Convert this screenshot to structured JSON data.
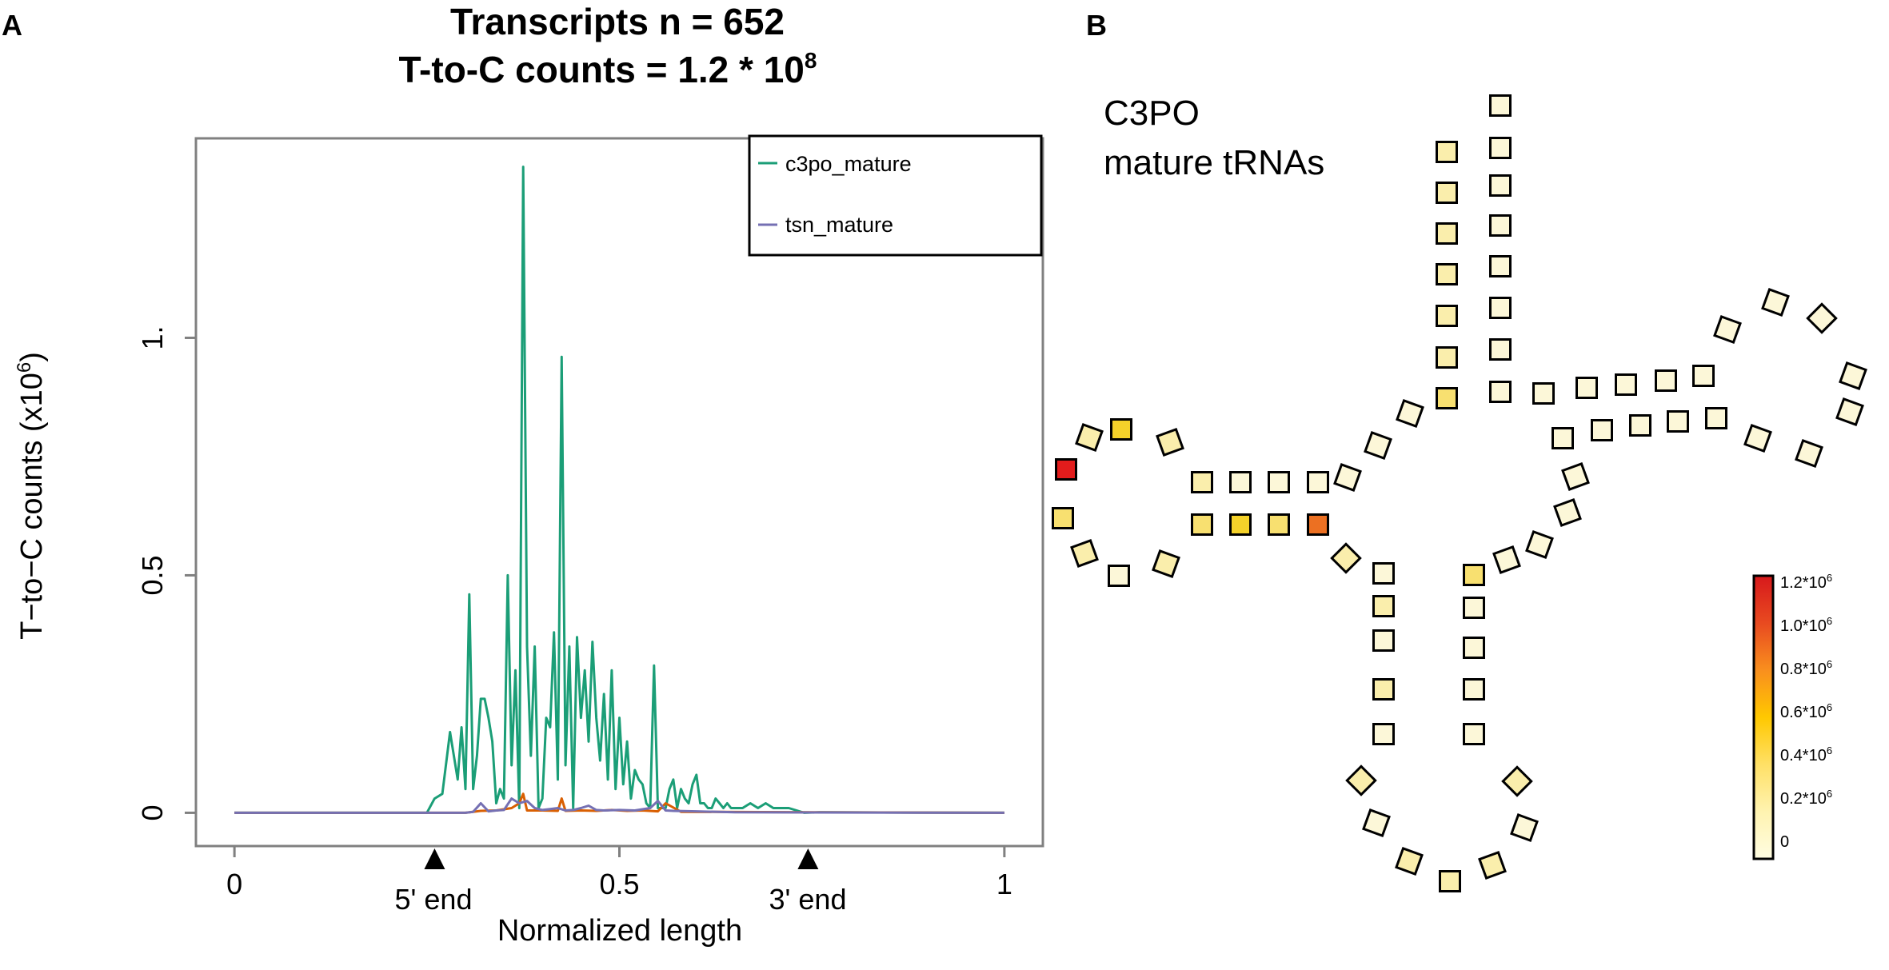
{
  "panel_a": {
    "label": "A",
    "title_line1": "Transcripts n = 652",
    "title_line2_main": "T-to-C counts = 1.2 * 10",
    "title_line2_sup": "8",
    "ylabel_main": "T−to−C counts (x10",
    "ylabel_sup": "6",
    "ylabel_close": ")",
    "xlabel": "Normalized length",
    "marker_5": "5' end",
    "marker_3": "3' end"
  },
  "panel_b": {
    "label": "B",
    "text_line1": "C3PO",
    "text_line2": "mature tRNAs",
    "colorbar": {
      "labels": [
        {
          "main": "1.2*10",
          "sup": "6",
          "v": 1.2
        },
        {
          "main": "1.0*10",
          "sup": "6",
          "v": 1.0
        },
        {
          "main": "0.8*10",
          "sup": "6",
          "v": 0.8
        },
        {
          "main": "0.6*10",
          "sup": "6",
          "v": 0.6
        },
        {
          "main": "0.4*10",
          "sup": "6",
          "v": 0.4
        },
        {
          "main": "0.2*10",
          "sup": "6",
          "v": 0.2
        },
        {
          "main": "0",
          "sup": "",
          "v": 0
        }
      ],
      "colors": [
        "#fffde2",
        "#fff3b0",
        "#ffe066",
        "#ffc800",
        "#f98f1e",
        "#e84a20",
        "#d7191c"
      ]
    },
    "colors": {
      "c0": "#fcf7d8",
      "c1": "#faeeac",
      "c2": "#f8e070",
      "c3": "#f5d22a",
      "orange": "#ec7022",
      "red": "#e21c1c"
    },
    "nucleotides": [
      {
        "c": "c1"
      },
      {
        "c": "c1"
      },
      {
        "c": "c1"
      },
      {
        "c": "c1"
      },
      {
        "c": "c1"
      },
      {
        "c": "c1"
      },
      {
        "c": "c2"
      },
      {
        "c": "c0"
      },
      {
        "c": "c0"
      },
      {
        "c": "c0"
      },
      {
        "c": "c0"
      },
      {
        "c": "c0"
      },
      {
        "c": "c0"
      },
      {
        "c": "c1"
      },
      {
        "c": "c1"
      },
      {
        "c": "c3"
      },
      {
        "c": "c1"
      },
      {
        "c": "red"
      },
      {
        "c": "c2"
      },
      {
        "c": "c1"
      },
      {
        "c": "c0"
      },
      {
        "c": "c1"
      },
      {
        "c": "c2"
      },
      {
        "c": "c3"
      },
      {
        "c": "c2"
      },
      {
        "c": "orange"
      },
      {
        "c": "c1"
      },
      {
        "c": "c0"
      },
      {
        "c": "c1"
      },
      {
        "c": "c0"
      },
      {
        "c": "c1"
      },
      {
        "c": "c0"
      },
      {
        "c": "c1"
      },
      {
        "c": "c0"
      },
      {
        "c": "c1"
      },
      {
        "c": "c1"
      },
      {
        "c": "c1"
      },
      {
        "c": "c0"
      },
      {
        "c": "c1"
      },
      {
        "c": "c0"
      },
      {
        "c": "c0"
      },
      {
        "c": "c0"
      },
      {
        "c": "c0"
      },
      {
        "c": "c2"
      },
      {
        "c": "c0"
      },
      {
        "c": "c0"
      },
      {
        "c": "c0"
      },
      {
        "c": "c0"
      },
      {
        "c": "c0"
      },
      {
        "c": "c0"
      },
      {
        "c": "c0"
      },
      {
        "c": "c0"
      },
      {
        "c": "c0"
      },
      {
        "c": "c0"
      },
      {
        "c": "c0"
      },
      {
        "c": "c0"
      },
      {
        "c": "c0"
      },
      {
        "c": "c0"
      },
      {
        "c": "c0"
      },
      {
        "c": "c0"
      },
      {
        "c": "c0"
      },
      {
        "c": "c0"
      },
      {
        "c": "c0"
      },
      {
        "c": "c0"
      },
      {
        "c": "c0"
      },
      {
        "c": "c0"
      },
      {
        "c": "c0"
      },
      {
        "c": "c0"
      },
      {
        "c": "c0"
      },
      {
        "c": "c0"
      },
      {
        "c": "c0"
      },
      {
        "c": "c0"
      },
      {
        "c": "c0"
      },
      {
        "c": "c0"
      },
      {
        "c": "c0"
      },
      {
        "c": "c0"
      },
      {
        "c": "c0"
      }
    ]
  },
  "chart_data": {
    "type": "line",
    "title": "Transcripts n = 652 / T-to-C counts = 1.2 * 10^8",
    "xlabel": "Normalized length",
    "ylabel": "T−to−C counts (x10^6)",
    "xlim": [
      -0.05,
      1.05
    ],
    "ylim": [
      -0.07,
      1.42
    ],
    "xticks": [
      {
        "v": 0,
        "label": "0"
      },
      {
        "v": 0.5,
        "label": "0.5"
      },
      {
        "v": 1,
        "label": "1"
      }
    ],
    "yticks": [
      {
        "v": 0,
        "label": "0"
      },
      {
        "v": 0.5,
        "label": "0.5"
      },
      {
        "v": 1,
        "label": "1."
      }
    ],
    "markers": [
      {
        "x": 0.26
      },
      {
        "x": 0.745
      }
    ],
    "legend_position": "top-right",
    "grid": false,
    "series": [
      {
        "name": "c3po_mature",
        "color": "#1b9e77",
        "x": [
          0,
          0.25,
          0.26,
          0.27,
          0.28,
          0.29,
          0.295,
          0.3,
          0.305,
          0.31,
          0.315,
          0.32,
          0.325,
          0.33,
          0.335,
          0.34,
          0.345,
          0.35,
          0.355,
          0.36,
          0.365,
          0.37,
          0.375,
          0.38,
          0.385,
          0.39,
          0.395,
          0.4,
          0.405,
          0.41,
          0.415,
          0.42,
          0.425,
          0.43,
          0.435,
          0.44,
          0.445,
          0.45,
          0.455,
          0.46,
          0.465,
          0.47,
          0.475,
          0.48,
          0.485,
          0.49,
          0.495,
          0.5,
          0.505,
          0.51,
          0.515,
          0.52,
          0.525,
          0.53,
          0.535,
          0.54,
          0.545,
          0.55,
          0.555,
          0.56,
          0.565,
          0.57,
          0.575,
          0.58,
          0.585,
          0.59,
          0.595,
          0.6,
          0.605,
          0.61,
          0.615,
          0.62,
          0.625,
          0.63,
          0.635,
          0.64,
          0.645,
          0.65,
          0.66,
          0.67,
          0.68,
          0.69,
          0.7,
          0.72,
          0.74,
          0.76,
          1
        ],
        "y": [
          0,
          0,
          0.03,
          0.04,
          0.17,
          0.07,
          0.18,
          0.05,
          0.46,
          0.05,
          0.12,
          0.24,
          0.24,
          0.2,
          0.15,
          0.02,
          0.05,
          0.03,
          0.5,
          0.1,
          0.3,
          0.01,
          1.36,
          0.35,
          0.12,
          0.35,
          0.01,
          0.03,
          0.2,
          0.18,
          0.38,
          0.07,
          0.96,
          0.1,
          0.35,
          0.01,
          0.37,
          0.2,
          0.3,
          0.15,
          0.36,
          0.2,
          0.11,
          0.25,
          0.07,
          0.3,
          0.05,
          0.2,
          0.06,
          0.15,
          0.03,
          0.09,
          0.07,
          0.06,
          0.02,
          0.01,
          0.31,
          0.01,
          0.01,
          0.01,
          0.05,
          0.07,
          0.01,
          0.05,
          0.03,
          0.02,
          0.06,
          0.08,
          0.02,
          0.02,
          0.01,
          0.01,
          0.03,
          0.02,
          0.01,
          0.02,
          0.01,
          0.01,
          0.01,
          0.02,
          0.01,
          0.02,
          0.01,
          0.01,
          0,
          0.001,
          0
        ]
      },
      {
        "name": "",
        "color": "#d95f02",
        "x": [
          0,
          0.3,
          0.32,
          0.34,
          0.36,
          0.37,
          0.375,
          0.38,
          0.4,
          0.42,
          0.425,
          0.43,
          0.45,
          0.47,
          0.49,
          0.51,
          0.53,
          0.55,
          0.56,
          0.58,
          1
        ],
        "y": [
          0,
          0,
          0.004,
          0.005,
          0.01,
          0.02,
          0.04,
          0.005,
          0.005,
          0.004,
          0.03,
          0.004,
          0.005,
          0.004,
          0.006,
          0.004,
          0.005,
          0.003,
          0.02,
          0.002,
          0
        ]
      },
      {
        "name": "tsn_mature",
        "color": "#7570b3",
        "x": [
          0,
          0.3,
          0.31,
          0.32,
          0.33,
          0.34,
          0.35,
          0.36,
          0.37,
          0.38,
          0.39,
          0.4,
          0.41,
          0.42,
          0.43,
          0.44,
          0.45,
          0.46,
          0.47,
          0.48,
          0.5,
          0.52,
          0.54,
          0.55,
          0.56,
          0.57,
          0.6,
          0.65,
          1
        ],
        "y": [
          0,
          0,
          0.002,
          0.02,
          0.003,
          0.005,
          0.006,
          0.03,
          0.02,
          0.025,
          0.01,
          0.006,
          0.008,
          0.01,
          0.005,
          0.006,
          0.01,
          0.015,
          0.006,
          0.005,
          0.006,
          0.005,
          0.01,
          0.025,
          0.005,
          0.004,
          0.003,
          0.001,
          0
        ]
      }
    ]
  }
}
